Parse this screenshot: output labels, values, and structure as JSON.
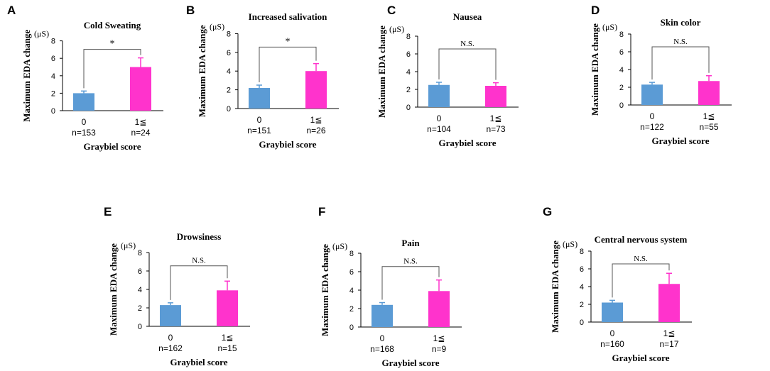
{
  "figure": {
    "group_label_low": "0",
    "group_label_high": "1≦",
    "xlabel": "Graybiel score",
    "ylabel": "Maximum EDA change",
    "unit": "(μS)",
    "colors": {
      "low": "#5b9bd5",
      "high": "#ff33cc",
      "axis": "#000000",
      "bracket": "#555555"
    }
  },
  "chart_data": [
    {
      "type": "bar",
      "panel": "A",
      "title": "Cold Sweating",
      "categories": [
        "0",
        "1≦"
      ],
      "n_labels": [
        "n=153",
        "n=24"
      ],
      "values": [
        2.0,
        5.0
      ],
      "errors": [
        0.25,
        1.05
      ],
      "significance": "*",
      "ylim": [
        0,
        8
      ],
      "yticks": [
        "0",
        "2",
        "4",
        "6",
        "8"
      ],
      "xlabel": "Graybiel score",
      "ylabel": "Maximum EDA change",
      "unit": "(μS)"
    },
    {
      "type": "bar",
      "panel": "B",
      "title": "Increased salivation",
      "categories": [
        "0",
        "1≦"
      ],
      "n_labels": [
        "n=151",
        "n=26"
      ],
      "values": [
        2.2,
        4.0
      ],
      "errors": [
        0.3,
        0.8
      ],
      "significance": "*",
      "ylim": [
        0,
        8
      ],
      "yticks": [
        "0",
        "2",
        "4",
        "6",
        "8"
      ],
      "xlabel": "Graybiel score",
      "ylabel": "Maximum EDA change",
      "unit": "(μS)"
    },
    {
      "type": "bar",
      "panel": "C",
      "title": "Nausea",
      "categories": [
        "0",
        "1≦"
      ],
      "n_labels": [
        "n=104",
        "n=73"
      ],
      "values": [
        2.5,
        2.4
      ],
      "errors": [
        0.3,
        0.35
      ],
      "significance": "N.S.",
      "ylim": [
        0,
        8
      ],
      "yticks": [
        "0",
        "2",
        "4",
        "6",
        "8"
      ],
      "xlabel": "Graybiel score",
      "ylabel": "Maximum EDA change",
      "unit": "(μS)"
    },
    {
      "type": "bar",
      "panel": "D",
      "title": "Skin color",
      "categories": [
        "0",
        "1≦"
      ],
      "n_labels": [
        "n=122",
        "n=55"
      ],
      "values": [
        2.3,
        2.7
      ],
      "errors": [
        0.25,
        0.6
      ],
      "significance": "N.S.",
      "ylim": [
        0,
        8
      ],
      "yticks": [
        "0",
        "2",
        "4",
        "6",
        "8"
      ],
      "xlabel": "Graybiel score",
      "ylabel": "Maximum EDA change",
      "unit": "(μS)"
    },
    {
      "type": "bar",
      "panel": "E",
      "title": "Drowsiness",
      "categories": [
        "0",
        "1≦"
      ],
      "n_labels": [
        "n=162",
        "n=15"
      ],
      "values": [
        2.3,
        3.9
      ],
      "errors": [
        0.25,
        1.0
      ],
      "significance": "N.S.",
      "ylim": [
        0,
        8
      ],
      "yticks": [
        "0",
        "2",
        "4",
        "6",
        "8"
      ],
      "xlabel": "Graybiel score",
      "ylabel": "Maximum EDA change",
      "unit": "(μS)"
    },
    {
      "type": "bar",
      "panel": "F",
      "title": "Pain",
      "categories": [
        "0",
        "1≦"
      ],
      "n_labels": [
        "n=168",
        "n=9"
      ],
      "values": [
        2.4,
        3.9
      ],
      "errors": [
        0.25,
        1.2
      ],
      "significance": "N.S.",
      "ylim": [
        0,
        8
      ],
      "yticks": [
        "0",
        "2",
        "4",
        "6",
        "8"
      ],
      "xlabel": "Graybiel score",
      "ylabel": "Maximum EDA change",
      "unit": "(μS)"
    },
    {
      "type": "bar",
      "panel": "G",
      "title": "Central nervous system",
      "categories": [
        "0",
        "1≦"
      ],
      "n_labels": [
        "n=160",
        "n=17"
      ],
      "values": [
        2.2,
        4.3
      ],
      "errors": [
        0.25,
        1.2
      ],
      "significance": "N.S.",
      "ylim": [
        0,
        8
      ],
      "yticks": [
        "0",
        "2",
        "4",
        "6",
        "8"
      ],
      "xlabel": "Graybiel score",
      "ylabel": "Maximum EDA change",
      "unit": "(μS)"
    }
  ]
}
